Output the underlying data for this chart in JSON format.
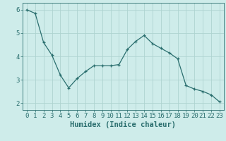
{
  "x": [
    0,
    1,
    2,
    3,
    4,
    5,
    6,
    7,
    8,
    9,
    10,
    11,
    12,
    13,
    14,
    15,
    16,
    17,
    18,
    19,
    20,
    21,
    22,
    23
  ],
  "y": [
    6.0,
    5.85,
    4.6,
    4.05,
    3.2,
    2.65,
    3.05,
    3.35,
    3.6,
    3.6,
    3.6,
    3.65,
    4.3,
    4.65,
    4.9,
    4.55,
    4.35,
    4.15,
    3.9,
    2.75,
    2.6,
    2.5,
    2.35,
    2.05
  ],
  "xlabel": "Humidex (Indice chaleur)",
  "bg_color": "#ceecea",
  "grid_color": "#aed4d0",
  "line_color": "#2a6e6e",
  "marker_color": "#2a6e6e",
  "ylim": [
    1.7,
    6.3
  ],
  "xlim": [
    -0.5,
    23.5
  ],
  "yticks": [
    2,
    3,
    4,
    5,
    6
  ],
  "xticks": [
    0,
    1,
    2,
    3,
    4,
    5,
    6,
    7,
    8,
    9,
    10,
    11,
    12,
    13,
    14,
    15,
    16,
    17,
    18,
    19,
    20,
    21,
    22,
    23
  ],
  "tick_fontsize": 6.5,
  "xlabel_fontsize": 7.5
}
